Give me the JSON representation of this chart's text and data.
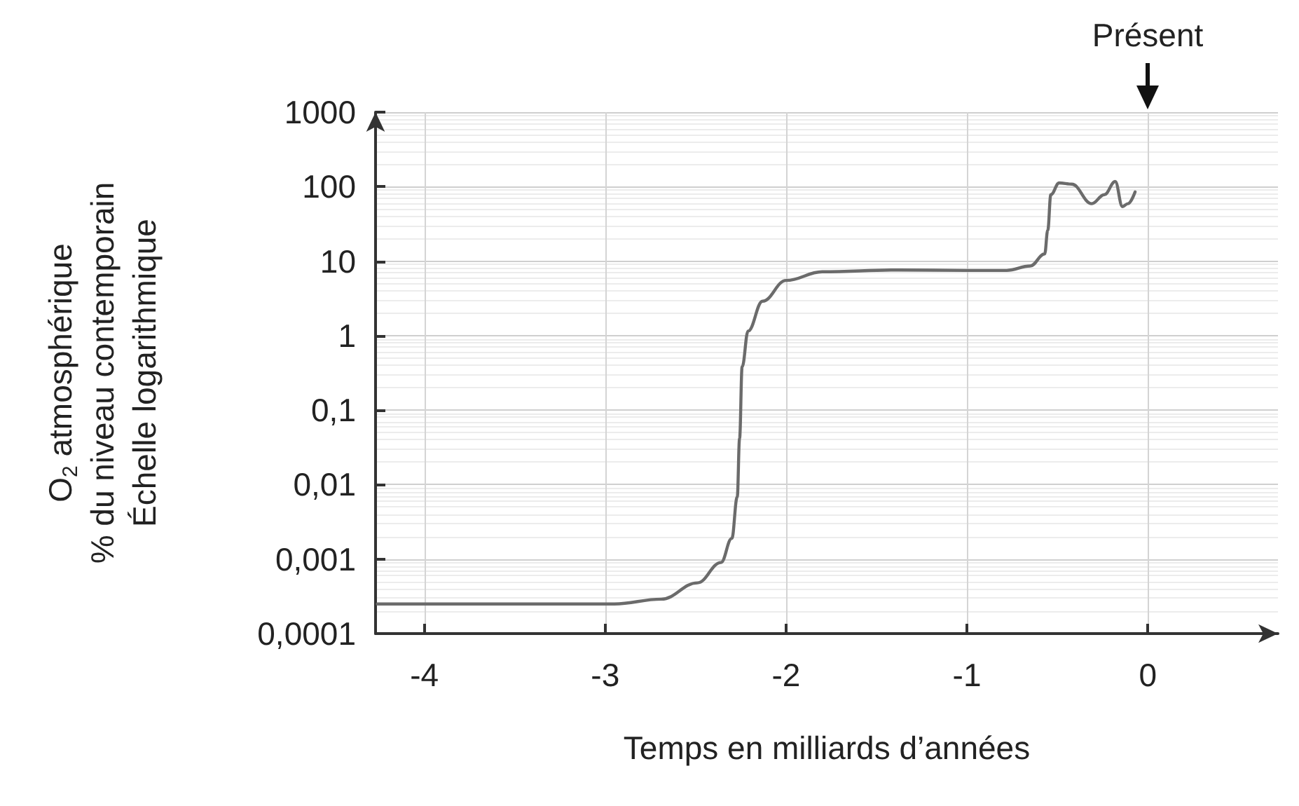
{
  "chart_data": {
    "type": "line",
    "xlabel": "Temps en milliards d’années",
    "ylabel": "O$_{2}$ atmosphérique\n% du niveau contemporain\nÉchelle logarithmique",
    "log": "y",
    "grid": true,
    "marker": "none",
    "line_style": "solid",
    "xlim": [
      -4.27,
      0.72
    ],
    "xticks": [
      -4,
      -3,
      -2,
      -1,
      0
    ],
    "ylim": [
      0.0001,
      1000
    ],
    "yticks": [
      {
        "value": 0.0001,
        "label": "0,0001"
      },
      {
        "value": 0.001,
        "label": "0,001"
      },
      {
        "value": 0.01,
        "label": "0,01"
      },
      {
        "value": 0.1,
        "label": "0,1"
      },
      {
        "value": 1,
        "label": "1"
      },
      {
        "value": 10,
        "label": "10"
      },
      {
        "value": 100,
        "label": "100"
      },
      {
        "value": 1000,
        "label": "1000"
      }
    ],
    "annotations": [
      "Présent"
    ],
    "series": [
      {
        "color": "#6b6b6b",
        "x": [
          -4.26,
          -2.95,
          -2.69,
          -2.49,
          -2.36,
          -2.3,
          -2.27,
          -2.257,
          -2.243,
          -2.21,
          -2.13,
          -2.0,
          -1.8,
          -1.38,
          -1.0,
          -0.78,
          -0.65,
          -0.57,
          -0.553,
          -0.536,
          -0.49,
          -0.42,
          -0.31,
          -0.24,
          -0.18,
          -0.14,
          -0.11,
          -0.07
        ],
        "values": [
          0.00025,
          0.00025,
          0.00029,
          0.00048,
          0.0009,
          0.0019,
          0.0068,
          0.042,
          0.38,
          1.15,
          2.9,
          5.5,
          7.2,
          7.6,
          7.5,
          7.5,
          8.6,
          12.5,
          26,
          78,
          112,
          108,
          59,
          78,
          117,
          54,
          59,
          85
        ]
      }
    ]
  }
}
